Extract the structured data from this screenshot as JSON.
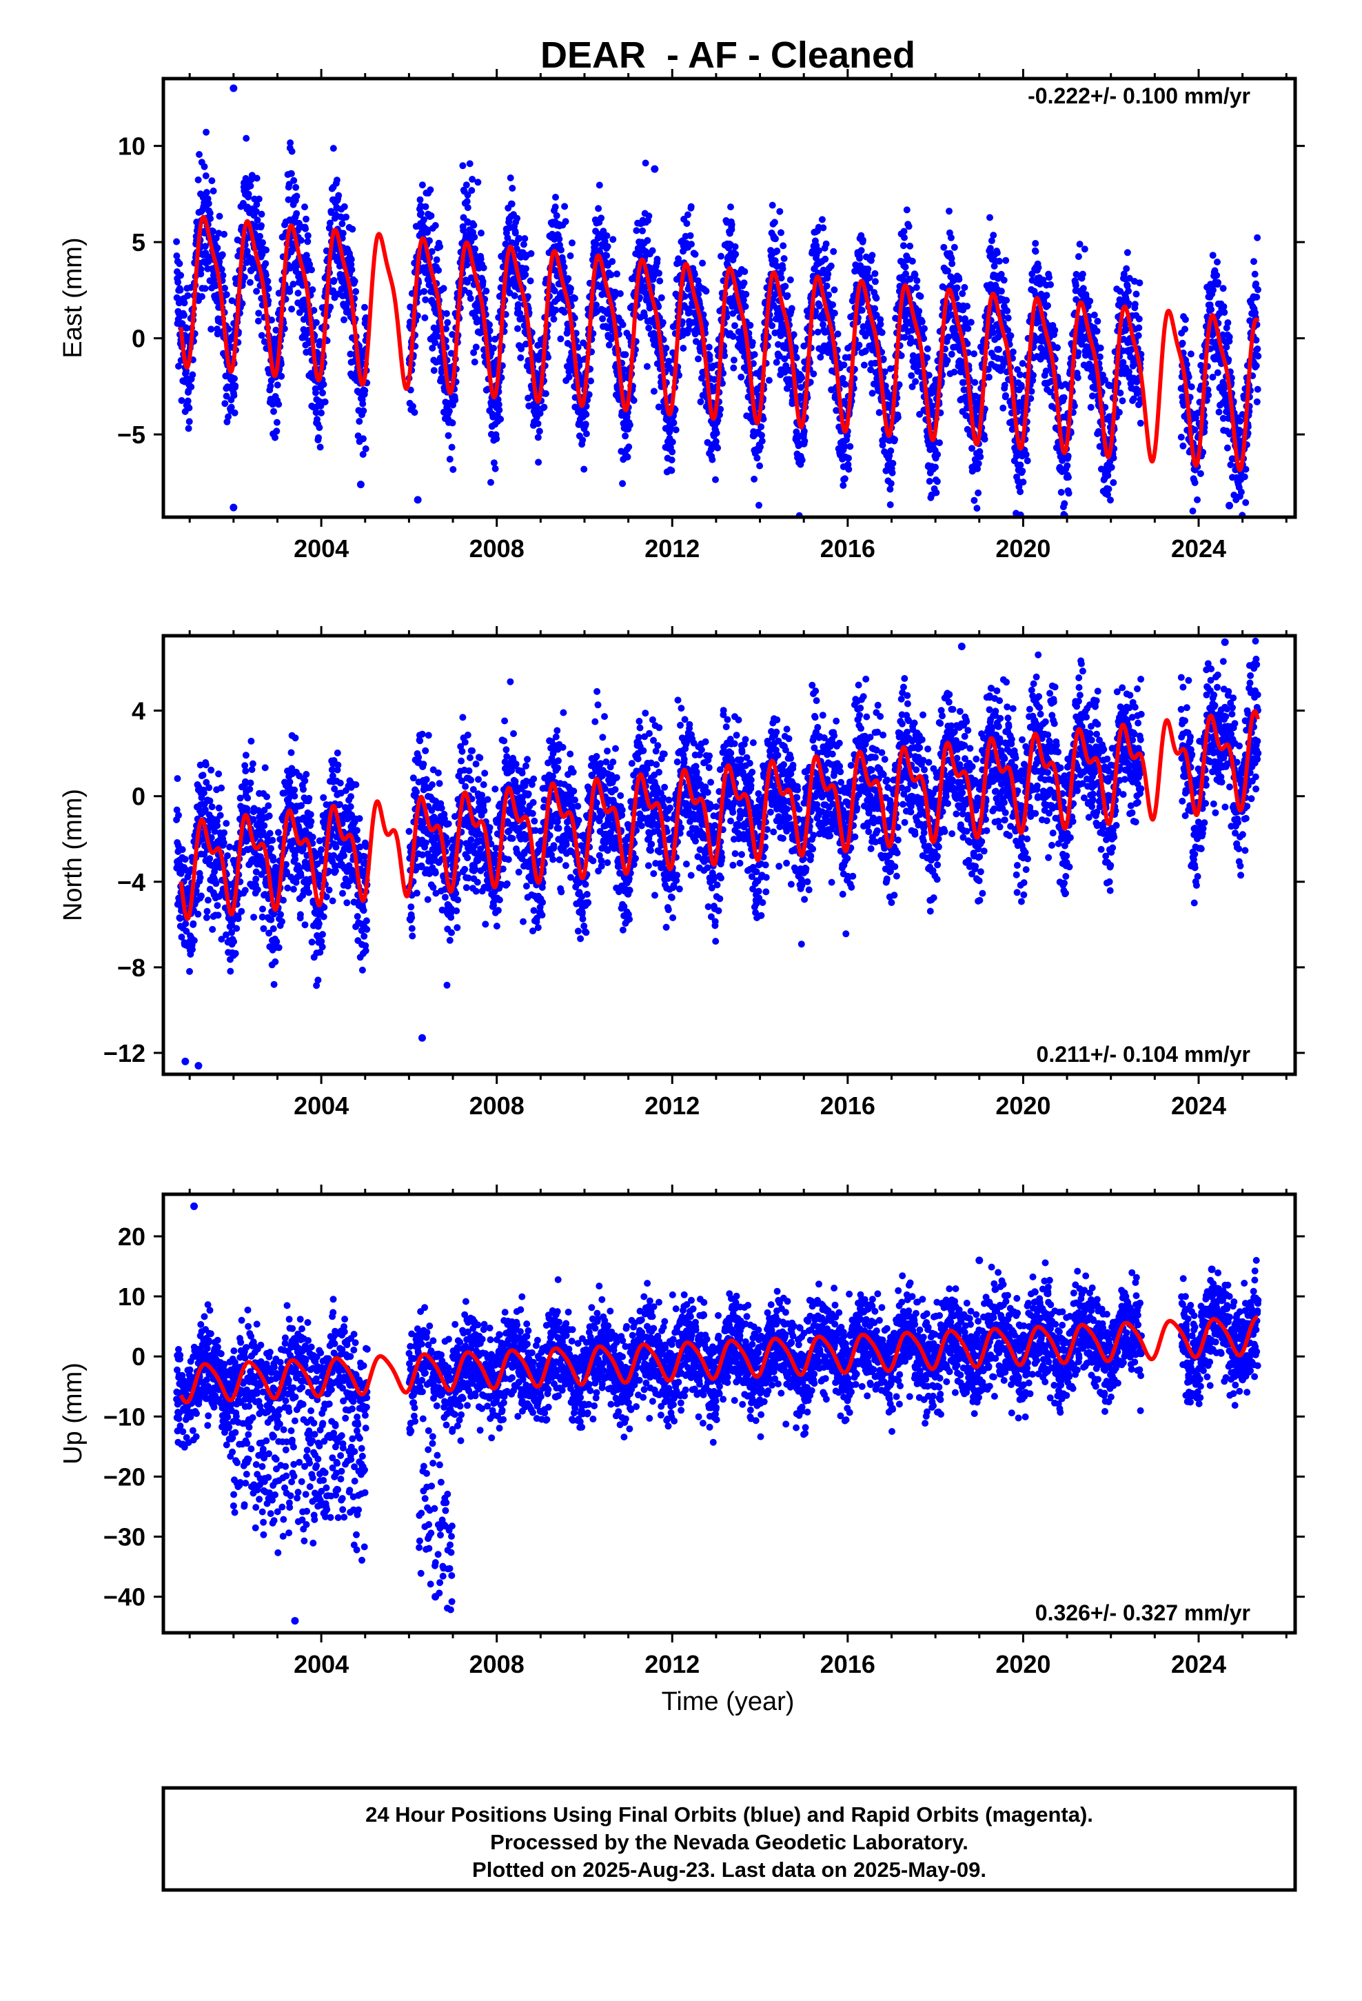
{
  "title": "DEAR  - AF - Cleaned",
  "xlabel": "Time (year)",
  "footer": [
    "24 Hour Positions Using Final Orbits (blue) and Rapid Orbits (magenta).",
    "Processed by the Nevada Geodetic Laboratory.",
    "Plotted on 2025-Aug-23. Last data on 2025-May-09."
  ],
  "colors": {
    "observations": "#0000ff",
    "model": "#ff0000",
    "frame": "#000000"
  },
  "chart_data": [
    {
      "type": "scatter",
      "ylabel": "East (mm)",
      "rate_label": "-0.222+/- 0.100 mm/yr",
      "xlim": [
        2000.4,
        2026.2
      ],
      "ylim": [
        -9.3,
        13.5
      ],
      "xticks": [
        2004,
        2008,
        2012,
        2016,
        2020,
        2024
      ],
      "yticks": [
        -5,
        0,
        5,
        10
      ],
      "trend_mm_per_yr": -0.222,
      "model": {
        "offset": 2.9,
        "annual_amp": 3.6,
        "semiannual_amp": 1.0
      },
      "series": [
        {
          "values": [
            [
              2000.8,
              2.5
            ],
            [
              2001.0,
              -0.1
            ],
            [
              2001.4,
              6.3
            ],
            [
              2001.7,
              1.5
            ],
            [
              2001.9,
              -0.3
            ],
            [
              2002.4,
              6.0
            ],
            [
              2002.7,
              1.0
            ],
            [
              2002.9,
              -0.5
            ],
            [
              2003.4,
              5.9
            ],
            [
              2003.9,
              -0.8
            ],
            [
              2004.4,
              5.7
            ],
            [
              2004.9,
              -1.0
            ],
            [
              2005.4,
              5.5
            ],
            [
              2005.9,
              -1.2
            ],
            [
              2006.4,
              5.3
            ],
            [
              2006.9,
              -1.4
            ],
            [
              2007.4,
              5.0
            ],
            [
              2007.9,
              -1.6
            ],
            [
              2008.4,
              4.8
            ],
            [
              2008.9,
              -1.8
            ],
            [
              2009.4,
              4.6
            ],
            [
              2009.9,
              -2.0
            ],
            [
              2010.4,
              4.4
            ],
            [
              2010.9,
              -2.2
            ],
            [
              2011.4,
              4.1
            ],
            [
              2011.9,
              -2.4
            ],
            [
              2012.4,
              3.9
            ],
            [
              2012.9,
              -2.6
            ],
            [
              2013.4,
              3.6
            ],
            [
              2013.9,
              -2.9
            ],
            [
              2014.4,
              3.4
            ],
            [
              2014.9,
              -3.1
            ],
            [
              2015.4,
              3.2
            ],
            [
              2015.9,
              -3.3
            ],
            [
              2016.4,
              3.0
            ],
            [
              2016.9,
              -3.5
            ],
            [
              2017.4,
              2.7
            ],
            [
              2017.9,
              -3.7
            ],
            [
              2018.4,
              2.5
            ],
            [
              2018.9,
              -4.0
            ],
            [
              2019.4,
              2.3
            ],
            [
              2019.9,
              -4.2
            ],
            [
              2020.4,
              2.0
            ],
            [
              2020.9,
              -4.4
            ],
            [
              2021.4,
              1.8
            ],
            [
              2021.9,
              -4.7
            ],
            [
              2022.4,
              1.6
            ],
            [
              2022.9,
              -4.9
            ],
            [
              2023.4,
              1.4
            ],
            [
              2023.9,
              -5.1
            ],
            [
              2024.4,
              1.2
            ],
            [
              2024.9,
              -5.4
            ],
            [
              2025.3,
              0.4
            ]
          ]
        }
      ],
      "observations_summary": {
        "start": 2000.7,
        "end": 2025.36,
        "gaps": [
          [
            2005.05,
            2006.0
          ],
          [
            2022.7,
            2023.6
          ]
        ],
        "scatter_mm": 1.7,
        "outliers": [
          [
            2002.0,
            13.0
          ],
          [
            2002.0,
            -8.8
          ],
          [
            2006.2,
            -8.4
          ],
          [
            2004.9,
            -7.6
          ],
          [
            2011.6,
            8.8
          ],
          [
            2024.7,
            -8.7
          ]
        ]
      }
    },
    {
      "type": "scatter",
      "ylabel": "North (mm)",
      "rate_label": "0.211+/- 0.104 mm/yr",
      "xlim": [
        2000.4,
        2026.2
      ],
      "ylim": [
        -13.0,
        7.5
      ],
      "xticks": [
        2004,
        2008,
        2012,
        2016,
        2020,
        2024
      ],
      "yticks": [
        -12,
        -8,
        -4,
        0,
        4
      ],
      "trend_mm_per_yr": 0.211,
      "model": {
        "offset": -3.2,
        "annual_amp": 1.7,
        "semiannual_amp": 1.0
      },
      "series": [
        {
          "values": [
            [
              2000.8,
              -1.7
            ],
            [
              2001.0,
              -4.0
            ],
            [
              2001.2,
              -3.2
            ],
            [
              2001.5,
              0.2
            ],
            [
              2001.8,
              -3.9
            ],
            [
              2002.5,
              0.4
            ],
            [
              2003.5,
              0.6
            ],
            [
              2004.5,
              0.8
            ],
            [
              2005.5,
              1.0
            ],
            [
              2006.5,
              1.2
            ],
            [
              2007.5,
              1.4
            ],
            [
              2008.5,
              1.6
            ],
            [
              2009.5,
              1.8
            ],
            [
              2010.5,
              2.0
            ],
            [
              2011.5,
              2.2
            ],
            [
              2012.5,
              2.4
            ],
            [
              2013.5,
              2.6
            ],
            [
              2014.5,
              2.8
            ],
            [
              2015.5,
              3.0
            ],
            [
              2016.5,
              3.3
            ],
            [
              2017.5,
              3.5
            ],
            [
              2018.5,
              3.7
            ],
            [
              2019.5,
              3.9
            ],
            [
              2020.5,
              4.1
            ],
            [
              2021.5,
              4.3
            ],
            [
              2022.5,
              4.5
            ],
            [
              2023.5,
              4.7
            ],
            [
              2024.5,
              4.9
            ],
            [
              2025.3,
              2.1
            ]
          ]
        }
      ],
      "observations_summary": {
        "start": 2000.7,
        "end": 2025.36,
        "gaps": [
          [
            2005.05,
            2006.0
          ],
          [
            2022.7,
            2023.6
          ]
        ],
        "scatter_mm": 1.6,
        "outliers": [
          [
            2000.9,
            -12.4
          ],
          [
            2001.2,
            -12.6
          ],
          [
            2006.3,
            -11.3
          ],
          [
            2024.6,
            7.2
          ],
          [
            2018.6,
            7.0
          ]
        ]
      }
    },
    {
      "type": "scatter",
      "ylabel": "Up (mm)",
      "rate_label": "0.326+/- 0.327 mm/yr",
      "xlim": [
        2000.4,
        2026.2
      ],
      "ylim": [
        -46,
        27
      ],
      "xticks": [
        2004,
        2008,
        2012,
        2016,
        2020,
        2024
      ],
      "yticks": [
        -40,
        -30,
        -20,
        -10,
        0,
        10,
        20
      ],
      "trend_mm_per_yr": 0.326,
      "model": {
        "offset": -4.3,
        "annual_amp": 3.0,
        "semiannual_amp": 0.5
      },
      "series": [
        {
          "values": [
            [
              2000.8,
              -5.9
            ],
            [
              2001.0,
              -3.0
            ],
            [
              2001.5,
              -7.5
            ],
            [
              2002.0,
              -1.8
            ],
            [
              2002.5,
              -7.1
            ],
            [
              2003.0,
              -1.5
            ],
            [
              2003.5,
              -6.8
            ],
            [
              2004.0,
              -1.2
            ],
            [
              2004.5,
              -6.5
            ],
            [
              2005.0,
              -0.8
            ],
            [
              2005.5,
              -6.1
            ],
            [
              2006.5,
              -5.8
            ],
            [
              2008.5,
              -5.1
            ],
            [
              2010.5,
              -4.4
            ],
            [
              2012.5,
              -3.8
            ],
            [
              2014.5,
              -3.1
            ],
            [
              2016.5,
              -2.5
            ],
            [
              2018.5,
              -1.8
            ],
            [
              2020.0,
              4.6
            ],
            [
              2020.5,
              -1.2
            ],
            [
              2022.0,
              5.3
            ],
            [
              2022.5,
              -0.5
            ],
            [
              2024.0,
              5.9
            ],
            [
              2025.3,
              1.7
            ]
          ]
        }
      ],
      "observations_summary": {
        "start": 2000.7,
        "end": 2025.36,
        "gaps": [
          [
            2005.05,
            2006.0
          ],
          [
            2022.7,
            2023.6
          ]
        ],
        "scatter_mm": 4.0,
        "excursions": [
          [
            2002.0,
            2005.0,
            -20.0
          ],
          [
            2006.2,
            2007.0,
            -30.0
          ]
        ],
        "outliers": [
          [
            2001.1,
            25.0
          ],
          [
            2003.4,
            -44.0
          ],
          [
            2006.6,
            -40.0
          ],
          [
            2019.0,
            16.0
          ],
          [
            2024.3,
            14.5
          ]
        ]
      }
    }
  ]
}
